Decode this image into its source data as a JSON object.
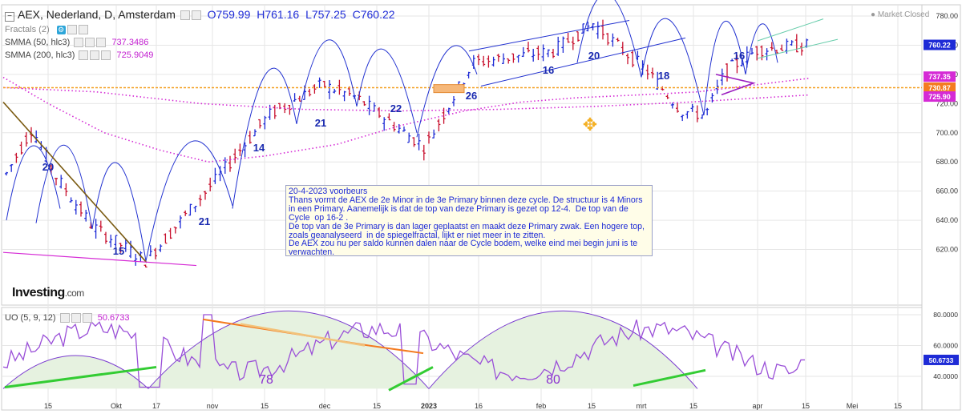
{
  "header": {
    "title": "AEX, Nederland, D, Amsterdam",
    "open": "O759.99",
    "high": "H761.16",
    "low": "L757.25",
    "close": "C760.22",
    "market_status": "Market Closed"
  },
  "indicators": {
    "fractals": "Fractals (2)",
    "sma50": "SMMA (50, hlc3)",
    "sma50_value": "737.3486",
    "sma200": "SMMA (200, hlc3)",
    "sma200_value": "725.9049",
    "uo": "UO (5, 9, 12)",
    "uo_value": "50.6733"
  },
  "note": {
    "lines": [
      "20-4-2023 voorbeurs",
      "Thans vormt de AEX de 2e Minor in de 3e Primary binnen deze cycle. De structuur is 4 Minors in een Primary. Aanemelijk is dat de top van deze Primary is gezet op 12-4.  De top van de Cycle  op 16-2 .",
      "De top van de 3e Primary is dan lager geplaatst en maakt deze Primary zwak. Een hogere top, zoals geanalyseerd  in de spiegelfractal, lijkt er niet meer in te zitten.",
      "De AEX zou nu per saldo kunnen dalen naar de Cycle bodem, welke eind mei begin juni is te verwachten."
    ]
  },
  "logo": {
    "brand": "Investing",
    "suffix": ".com"
  },
  "colors": {
    "up": "#1e2bd6",
    "down": "#c8102e",
    "arc": "#2030d0",
    "sma": "#d52ad5",
    "uo_line": "#9a4fd8",
    "uo_fill": "#e6f2e0",
    "green": "#33cc33",
    "orange": "#f47b20",
    "brown": "#7a5a10",
    "hline": "#f4a020"
  },
  "chart_data": [
    {
      "type": "candlestick",
      "ylim": [
        604,
        785
      ],
      "y_ticks": [
        "780.00",
        "760.00",
        "740.00",
        "720.00",
        "700.00",
        "680.00",
        "660.00",
        "640.00",
        "620.00"
      ],
      "x_ticks": [
        "15",
        "Okt",
        "17",
        "nov",
        "15",
        "dec",
        "15",
        "2023",
        "16",
        "feb",
        "15",
        "mrt",
        "15",
        "apr",
        "15",
        "Mei",
        "15"
      ],
      "price_labels": [
        {
          "value": 760.22,
          "text": "760.22",
          "color": "#1e2bd6"
        },
        {
          "value": 737.35,
          "text": "737.35",
          "color": "#d52ad5"
        },
        {
          "value": 730.87,
          "text": "730.87",
          "color": "#f47b20"
        },
        {
          "value": 725.9,
          "text": "725.90",
          "color": "#d52ad5"
        }
      ],
      "count_labels": [
        "20",
        "15",
        "14",
        "21",
        "21",
        "22",
        "26",
        "16",
        "20",
        "18",
        "16"
      ],
      "horizontal_line": 730.87
    },
    {
      "type": "line",
      "name": "UO (5, 9, 12)",
      "ylim": [
        30,
        85
      ],
      "y_ticks": [
        "80.0000",
        "60.0000",
        "40.0000"
      ],
      "last_label": {
        "value": 50.6733,
        "text": "50.6733"
      },
      "cycle_labels": [
        "78",
        "80"
      ]
    }
  ]
}
